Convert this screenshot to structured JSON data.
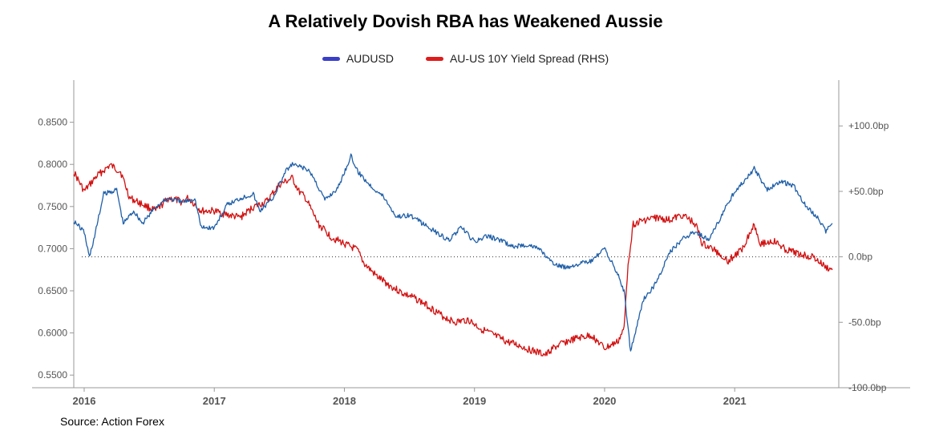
{
  "title": "A Relatively Dovish RBA has Weakened Aussie",
  "source": "Source: Action Forex",
  "colors": {
    "audusd": "#1f5fa8",
    "spread": "#d21010",
    "legend_blue": "#3a3fc8",
    "legend_red": "#e01b1b"
  },
  "chart_data": {
    "type": "line",
    "title": "A Relatively Dovish RBA has Weakened Aussie",
    "x_axis": {
      "ticks": [
        "2016",
        "2017",
        "2018",
        "2019",
        "2020",
        "2021"
      ],
      "tick_values": [
        2016.0,
        2017.0,
        2018.0,
        2019.0,
        2020.0,
        2021.0
      ],
      "range": [
        2015.92,
        2021.8
      ]
    },
    "y_left": {
      "label": "AUDUSD",
      "range": [
        0.535,
        0.9
      ],
      "ticks": [
        "0.5500",
        "0.6000",
        "0.6500",
        "0.7000",
        "0.7500",
        "0.8000",
        "0.8500"
      ],
      "tick_values": [
        0.55,
        0.6,
        0.65,
        0.7,
        0.75,
        0.8,
        0.85
      ]
    },
    "y_right": {
      "label": "AU-US 10Y Yield Spread (RHS)",
      "range": [
        -100,
        135
      ],
      "ticks": [
        "-100.0bp",
        "-50.0bp",
        "0.0bp",
        "+50.0bp",
        "+100.0bp"
      ],
      "tick_values": [
        -100,
        -50,
        0,
        50,
        100
      ]
    },
    "reference_line": {
      "axis": "right",
      "value": 0,
      "style": "dotted"
    },
    "series": [
      {
        "name": "AUDUSD",
        "axis": "left",
        "x": [
          2015.92,
          2016.0,
          2016.04,
          2016.08,
          2016.15,
          2016.25,
          2016.3,
          2016.38,
          2016.45,
          2016.55,
          2016.65,
          2016.75,
          2016.85,
          2016.9,
          2017.0,
          2017.1,
          2017.2,
          2017.3,
          2017.35,
          2017.45,
          2017.55,
          2017.6,
          2017.7,
          2017.75,
          2017.85,
          2017.95,
          2018.05,
          2018.1,
          2018.2,
          2018.3,
          2018.4,
          2018.5,
          2018.6,
          2018.7,
          2018.8,
          2018.9,
          2019.0,
          2019.1,
          2019.2,
          2019.3,
          2019.4,
          2019.5,
          2019.6,
          2019.7,
          2019.8,
          2019.9,
          2020.0,
          2020.1,
          2020.15,
          2020.2,
          2020.25,
          2020.3,
          2020.4,
          2020.5,
          2020.6,
          2020.7,
          2020.8,
          2020.9,
          2021.0,
          2021.1,
          2021.15,
          2021.25,
          2021.35,
          2021.45,
          2021.55,
          2021.65,
          2021.7,
          2021.75
        ],
        "values": [
          0.733,
          0.72,
          0.69,
          0.715,
          0.765,
          0.77,
          0.73,
          0.745,
          0.73,
          0.75,
          0.76,
          0.755,
          0.76,
          0.725,
          0.725,
          0.752,
          0.76,
          0.765,
          0.745,
          0.76,
          0.792,
          0.8,
          0.795,
          0.788,
          0.758,
          0.772,
          0.81,
          0.792,
          0.775,
          0.762,
          0.738,
          0.74,
          0.73,
          0.72,
          0.71,
          0.725,
          0.708,
          0.715,
          0.71,
          0.702,
          0.705,
          0.7,
          0.682,
          0.678,
          0.682,
          0.685,
          0.7,
          0.67,
          0.65,
          0.578,
          0.61,
          0.64,
          0.66,
          0.695,
          0.712,
          0.72,
          0.71,
          0.74,
          0.768,
          0.785,
          0.795,
          0.77,
          0.78,
          0.775,
          0.75,
          0.735,
          0.72,
          0.73
        ]
      },
      {
        "name": "AU-US 10Y Yield Spread (RHS)",
        "axis": "right",
        "x": [
          2015.92,
          2016.0,
          2016.1,
          2016.2,
          2016.28,
          2016.35,
          2016.45,
          2016.55,
          2016.65,
          2016.75,
          2016.8,
          2016.85,
          2016.9,
          2017.0,
          2017.1,
          2017.2,
          2017.3,
          2017.4,
          2017.5,
          2017.6,
          2017.65,
          2017.7,
          2017.8,
          2017.9,
          2018.0,
          2018.1,
          2018.15,
          2018.25,
          2018.35,
          2018.45,
          2018.55,
          2018.65,
          2018.75,
          2018.85,
          2018.95,
          2019.05,
          2019.15,
          2019.25,
          2019.35,
          2019.45,
          2019.55,
          2019.6,
          2019.7,
          2019.8,
          2019.9,
          2020.0,
          2020.1,
          2020.15,
          2020.18,
          2020.22,
          2020.3,
          2020.4,
          2020.5,
          2020.6,
          2020.7,
          2020.75,
          2020.85,
          2020.95,
          2021.05,
          2021.15,
          2021.2,
          2021.3,
          2021.4,
          2021.5,
          2021.6,
          2021.7,
          2021.75
        ],
        "values": [
          65,
          50,
          62,
          70,
          65,
          45,
          40,
          35,
          45,
          42,
          45,
          40,
          35,
          35,
          32,
          30,
          38,
          42,
          55,
          60,
          50,
          45,
          25,
          15,
          10,
          5,
          -5,
          -15,
          -22,
          -28,
          -32,
          -38,
          -45,
          -50,
          -48,
          -55,
          -60,
          -65,
          -68,
          -72,
          -75,
          -70,
          -65,
          -62,
          -60,
          -70,
          -65,
          -55,
          -5,
          25,
          28,
          30,
          28,
          32,
          25,
          10,
          5,
          -3,
          5,
          25,
          10,
          12,
          5,
          2,
          0,
          -8,
          -10
        ]
      }
    ]
  }
}
